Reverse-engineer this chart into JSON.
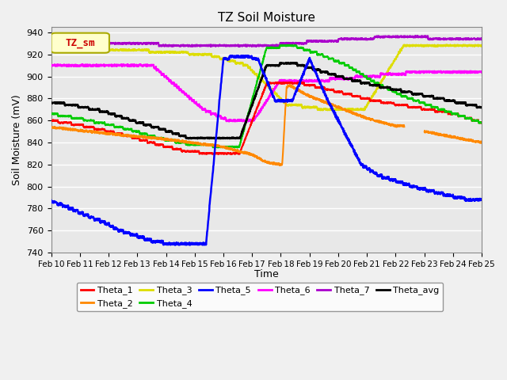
{
  "title": "TZ Soil Moisture",
  "xlabel": "Time",
  "ylabel": "Soil Moisture (mV)",
  "ylim": [
    740,
    945
  ],
  "xlim": [
    0,
    15
  ],
  "x_tick_labels": [
    "Feb 10",
    "Feb 11",
    "Feb 12",
    "Feb 13",
    "Feb 14",
    "Feb 15",
    "Feb 16",
    "Feb 17",
    "Feb 18",
    "Feb 19",
    "Feb 20",
    "Feb 21",
    "Feb 22",
    "Feb 23",
    "Feb 24",
    "Feb 25"
  ],
  "background_color": "#e8e8e8",
  "plot_bg_color": "#e8e8e8",
  "fig_bg_color": "#f0f0f0",
  "legend_label": "TZ_sm",
  "legend_box_bg": "#ffffcc",
  "legend_box_edge": "#aaaa00",
  "legend_text_color": "#cc0000",
  "series_colors": {
    "Theta_1": "#ff0000",
    "Theta_2": "#ff8800",
    "Theta_3": "#dddd00",
    "Theta_4": "#00cc00",
    "Theta_5": "#0000ff",
    "Theta_6": "#ff00ff",
    "Theta_7": "#aa00cc",
    "Theta_avg": "#000000"
  },
  "yticks": [
    740,
    760,
    780,
    800,
    820,
    840,
    860,
    880,
    900,
    920,
    940
  ]
}
